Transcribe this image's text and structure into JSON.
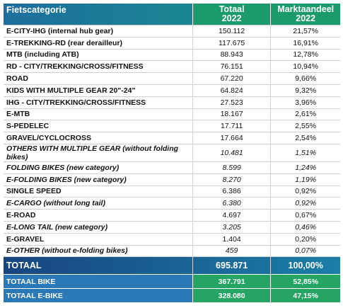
{
  "table": {
    "columns": [
      [
        "Fietscategorie"
      ],
      [
        "Totaal",
        "2022"
      ],
      [
        "Marktaandeel",
        "2022"
      ]
    ],
    "rows": [
      [
        "E-CITY-IHG (internal hub gear)",
        "150.112",
        "21,57%"
      ],
      [
        "E-TREKKING-RD (rear derailleur)",
        "117.675",
        "16,91%"
      ],
      [
        "MTB (including ATB)",
        "88.943",
        "12,78%"
      ],
      [
        "RD - CITY/TREKKING/CROSS/FITNESS",
        "76.151",
        "10,94%"
      ],
      [
        "ROAD",
        "67.220",
        "9,66%"
      ],
      [
        "KIDS WITH MULTIPLE GEAR 20\"-24\"",
        "64.824",
        "9,32%"
      ],
      [
        "IHG - CITY/TREKKING/CROSS/FITNESS",
        "27.523",
        "3,96%"
      ],
      [
        "E-MTB",
        "18.167",
        "2,61%"
      ],
      [
        "S-PEDELEC",
        "17.711",
        "2,55%"
      ],
      [
        "GRAVEL/CYCLOCROSS",
        "17.664",
        "2,54%"
      ],
      [
        "OTHERS WITH MULTIPLE GEAR (without folding bikes)",
        "10.481",
        "1,51%"
      ],
      [
        "FOLDING BIKES (new category)",
        "8.599",
        "1,24%"
      ],
      [
        "E-FOLDING BIKES (new category)",
        "8.270",
        "1,19%"
      ],
      [
        "SINGLE SPEED",
        "6.386",
        "0,92%"
      ],
      [
        "E-CARGO (without long tail)",
        "6.380",
        "0,92%"
      ],
      [
        "E-ROAD",
        "4.697",
        "0,67%"
      ],
      [
        "E-LONG TAIL (new category)",
        "3.205",
        "0,46%"
      ],
      [
        "E-GRAVEL",
        "1.404",
        "0,20%"
      ],
      [
        "E-OTHER (without e-folding bikes)",
        "459",
        "0,07%"
      ]
    ],
    "total": [
      "TOTAAL",
      "695.871",
      "100,00%"
    ],
    "subtotals": [
      [
        "TOTAAL BIKE",
        "367.791",
        "52,85%"
      ],
      [
        "TOTAAL E-BIKE",
        "328.080",
        "47,15%"
      ]
    ]
  }
}
